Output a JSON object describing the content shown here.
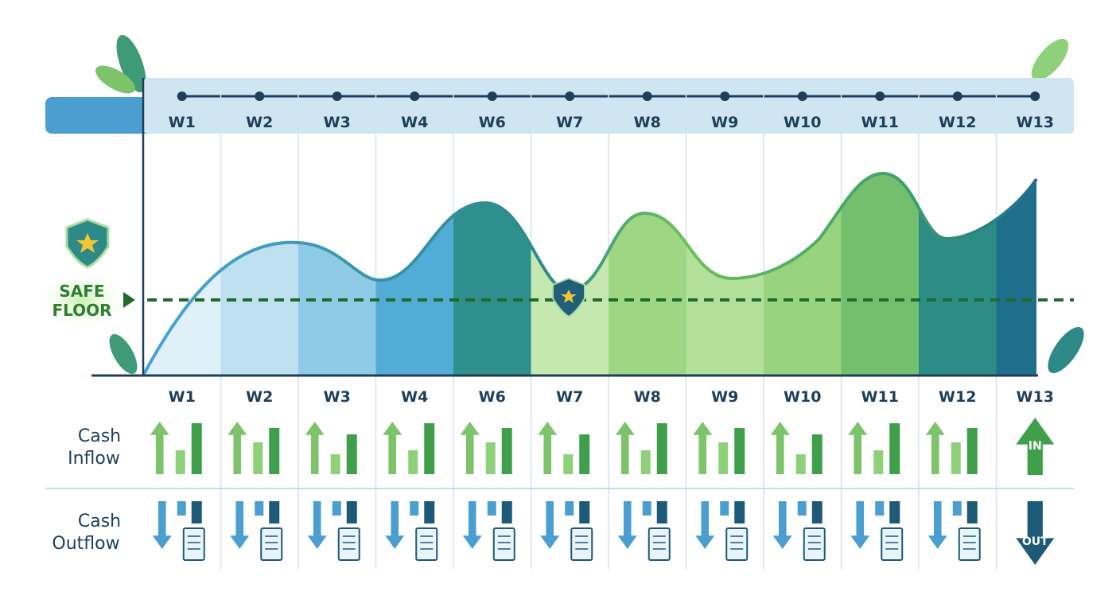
{
  "weeks": [
    "W1",
    "W2",
    "W3",
    "W4",
    "W6",
    "W7",
    "W8",
    "W9",
    "W10",
    "W11",
    "W12",
    "W13"
  ],
  "safe_floor": {
    "lines": [
      "SAFE",
      "FLOOR"
    ]
  },
  "rows": {
    "inflow": {
      "lines": [
        "Cash",
        "Inflow"
      ],
      "badge": "IN"
    },
    "outflow": {
      "lines": [
        "Cash",
        "Outflow"
      ],
      "badge": "OUT"
    }
  }
}
